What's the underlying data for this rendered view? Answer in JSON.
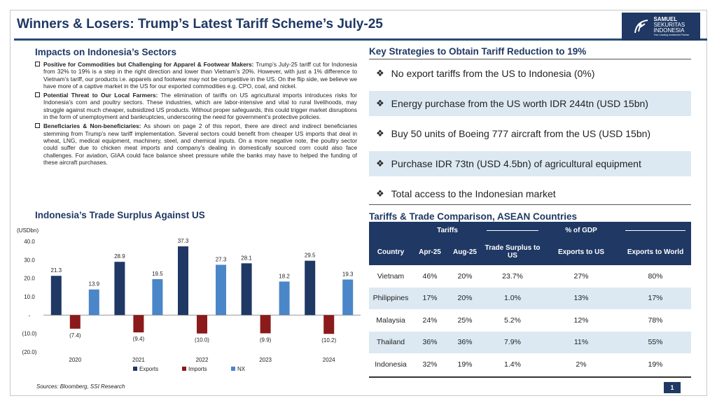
{
  "header": {
    "title": "Winners & Losers: Trump’s Latest Tariff Scheme’s July-25",
    "logo_text": [
      "SAMUEL",
      "SEKURITAS",
      "INDONESIA"
    ],
    "logo_tagline": "Your Leading Investment Partner"
  },
  "impacts": {
    "heading": "Impacts on Indonesia’s Sectors",
    "items": [
      {
        "bold": "Positive for Commodities but Challenging for Apparel & Footwear Makers:",
        "text": " Trump’s July-25 tariff cut for Indonesia from 32% to 19% is a step in the right direction and lower than Vietnam’s 20%. However, with just a 1% difference to Vietnam’s tariff, our products i.e. apparels and footwear may not be competitive in the US. On the flip side, we believe we have more of a captive market in the US for our exported commodities e.g. CPO, coal, and nickel."
      },
      {
        "bold": "Potential Threat to Our Local Farmers:",
        "text": " The elimination of tariffs on US agricultural imports introduces risks for Indonesia’s corn and poultry sectors. These industries, which are labor-intensive and vital to rural livelihoods, may struggle against much cheaper, subsidized US products. Without proper safeguards, this could trigger market disruptions in the form of unemployment and bankruptcies, underscoring the need for government’s protective policies."
      },
      {
        "bold": "Beneficiaries & Non-beneficiaries:",
        "text": " As shown on page 2 of this report, there are direct and indirect beneficiaries stemming from Trump’s new tariff implementation. Several sectors could benefit from cheaper US imports that deal in wheat, LNG, medical equipment, machinery, steel, and chemical inputs. On a more negative note, the poultry sector could suffer due to chicken meat imports and company’s dealing in domestically sourced corn could also face challenges. For aviation, GIAA could face balance sheet pressure while the banks may have to helped the funding of these aircraft purchases."
      }
    ]
  },
  "strategies": {
    "heading": "Key Strategies to Obtain Tariff Reduction to 19%",
    "items": [
      "No export tariffs from the US to Indonesia (0%)",
      "Energy purchase from the US worth IDR 244tn (USD 15bn)",
      "Buy 50 units of Boeing 777 aircraft from the US (USD 15bn)",
      "Purchase IDR 73tn (USD 4.5bn) of agricultural equipment",
      "Total access to the Indonesian market"
    ]
  },
  "table": {
    "heading": "Tariffs & Trade Comparison, ASEAN Countries",
    "group_tariffs": "Tariffs",
    "group_gdp": "% of GDP",
    "columns": [
      "Country",
      "Apr-25",
      "Aug-25",
      "Trade Surplus to US",
      "Exports to US",
      "Exports to World"
    ],
    "rows": [
      [
        "Vietnam",
        "46%",
        "20%",
        "23.7%",
        "27%",
        "80%"
      ],
      [
        "Philippines",
        "17%",
        "20%",
        "1.0%",
        "13%",
        "17%"
      ],
      [
        "Malaysia",
        "24%",
        "25%",
        "5.2%",
        "12%",
        "78%"
      ],
      [
        "Thailand",
        "36%",
        "36%",
        "7.9%",
        "11%",
        "55%"
      ],
      [
        "Indonesia",
        "32%",
        "19%",
        "1.4%",
        "2%",
        "19%"
      ]
    ]
  },
  "chart_data": {
    "type": "bar",
    "title": "Indonesia’s Trade Surplus Against US",
    "ylabel": "(USDbn)",
    "categories": [
      "2020",
      "2021",
      "2022",
      "2023",
      "2024"
    ],
    "ylim": [
      -20,
      40
    ],
    "yticks": [
      "40.0",
      "30.0",
      "20.0",
      "10.0",
      "-",
      "(10.0)",
      "(20.0)"
    ],
    "legend_position": "bottom",
    "series": [
      {
        "name": "Exports",
        "color": "#1f3864",
        "values": [
          21.3,
          28.9,
          37.3,
          28.1,
          29.5
        ],
        "labels": [
          "21.3",
          "28.9",
          "37.3",
          "28.1",
          "29.5"
        ]
      },
      {
        "name": "Imports",
        "color": "#8b1a1a",
        "values": [
          -7.4,
          -9.4,
          -10.0,
          -9.9,
          -10.2
        ],
        "labels": [
          "(7.4)",
          "(9.4)",
          "(10.0)",
          "(9.9)",
          "(10.2)"
        ]
      },
      {
        "name": "NX",
        "color": "#4a86c8",
        "values": [
          13.9,
          19.5,
          27.3,
          18.2,
          19.3
        ],
        "labels": [
          "13.9",
          "19.5",
          "27.3",
          "18.2",
          "19.3"
        ]
      }
    ]
  },
  "footer": {
    "sources": "Sources: Bloomberg, SSI Research",
    "page": "1"
  }
}
